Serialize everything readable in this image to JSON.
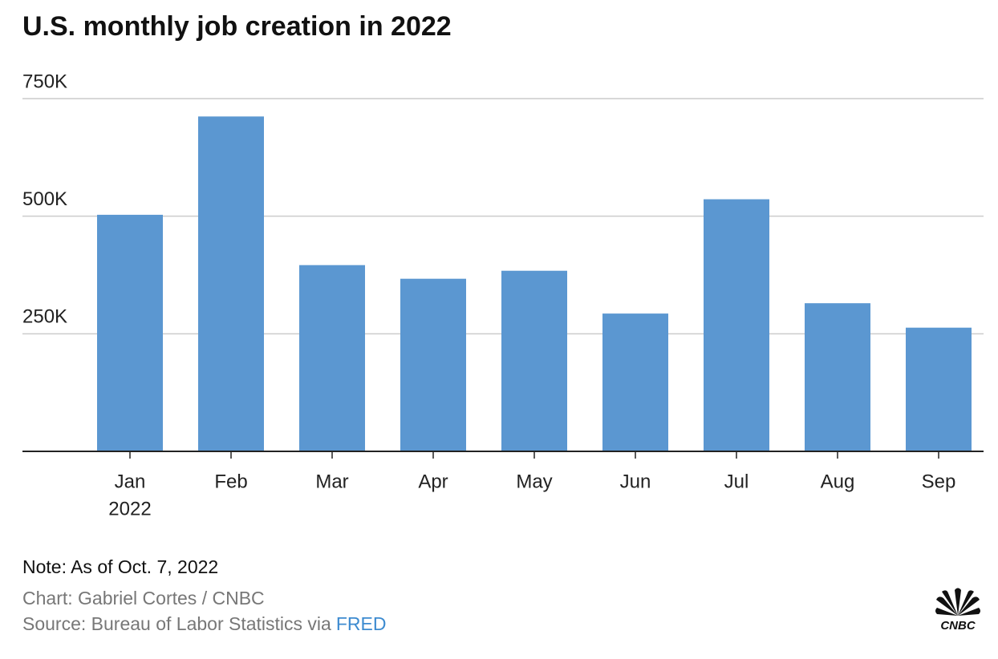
{
  "chart_data": {
    "type": "bar",
    "title": "U.S. monthly job creation in 2022",
    "categories": [
      "Jan",
      "Feb",
      "Mar",
      "Apr",
      "May",
      "Jun",
      "Jul",
      "Aug",
      "Sep"
    ],
    "year_label": "2022",
    "values": [
      503000,
      712000,
      396000,
      367000,
      384000,
      293000,
      536000,
      315000,
      263000
    ],
    "color": "#5b97d1",
    "ylim": [
      0,
      750000
    ],
    "yticks": [
      {
        "value": 250000,
        "label": "250K"
      },
      {
        "value": 500000,
        "label": "500K"
      },
      {
        "value": 750000,
        "label": "750K"
      }
    ],
    "grid": true,
    "note": "Note: As of Oct. 7, 2022",
    "credit": "Chart: Gabriel Cortes / CNBC",
    "source": {
      "text": "Source: Bureau of Labor Statistics via",
      "link": "FRED"
    }
  },
  "logo_text": "CNBC"
}
